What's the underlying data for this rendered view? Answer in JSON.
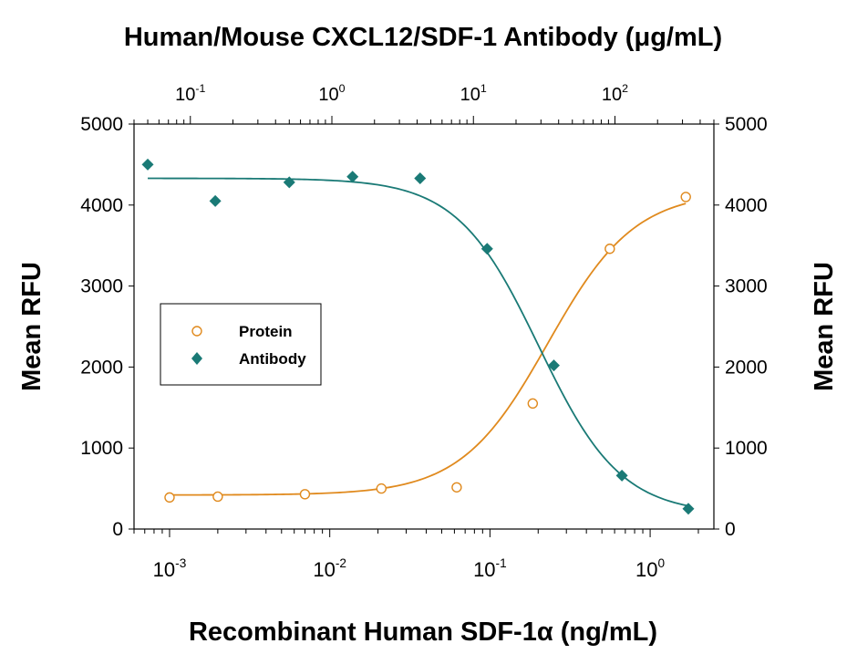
{
  "chart_data": {
    "type": "scatter",
    "title": "Human/Mouse CXCL12/SDF-1 Antibody (μg/mL)",
    "xlabel": "Recombinant Human SDF-1α (ng/mL)",
    "ylabel_left": "Mean RFU",
    "ylabel_right": "Mean RFU",
    "x_scale": "log",
    "bottom_xlim": [
      0.0006,
      2.5
    ],
    "top_xlim": [
      0.04,
      500
    ],
    "ylim": [
      0,
      5000
    ],
    "y_ticks": [
      0,
      1000,
      2000,
      3000,
      4000,
      5000
    ],
    "bottom_x_ticks": [
      {
        "value": 0.001,
        "base": "10",
        "exp": "-3"
      },
      {
        "value": 0.01,
        "base": "10",
        "exp": "-2"
      },
      {
        "value": 0.1,
        "base": "10",
        "exp": "-1"
      },
      {
        "value": 1,
        "base": "10",
        "exp": "0"
      }
    ],
    "top_x_ticks": [
      {
        "value": 0.1,
        "base": "10",
        "exp": "-1"
      },
      {
        "value": 1,
        "base": "10",
        "exp": "0"
      },
      {
        "value": 10,
        "base": "10",
        "exp": "1"
      },
      {
        "value": 100,
        "base": "10",
        "exp": "2"
      }
    ],
    "legend_position": "center-left",
    "series": [
      {
        "name": "Protein",
        "axis": "bottom",
        "marker": "open-circle",
        "color": "#e08a1e",
        "points": [
          {
            "x": 0.001,
            "y": 390
          },
          {
            "x": 0.002,
            "y": 400
          },
          {
            "x": 0.007,
            "y": 430
          },
          {
            "x": 0.021,
            "y": 500
          },
          {
            "x": 0.062,
            "y": 515
          },
          {
            "x": 0.185,
            "y": 1550
          },
          {
            "x": 0.56,
            "y": 3460
          },
          {
            "x": 1.67,
            "y": 4100
          }
        ],
        "fit": {
          "bottom": 420,
          "top": 4170,
          "ec50": 0.23,
          "hill": 1.6
        }
      },
      {
        "name": "Antibody",
        "axis": "top",
        "marker": "filled-diamond",
        "color": "#1a7a76",
        "points": [
          {
            "x": 0.05,
            "y": 4500
          },
          {
            "x": 0.15,
            "y": 4050
          },
          {
            "x": 0.5,
            "y": 4280
          },
          {
            "x": 1.4,
            "y": 4350
          },
          {
            "x": 4.2,
            "y": 4330
          },
          {
            "x": 12.5,
            "y": 3460
          },
          {
            "x": 37,
            "y": 2020
          },
          {
            "x": 112,
            "y": 660
          },
          {
            "x": 330,
            "y": 250
          }
        ],
        "fit": {
          "top": 4330,
          "bottom": 180,
          "ic50": 29,
          "hill": 1.5
        }
      }
    ]
  }
}
